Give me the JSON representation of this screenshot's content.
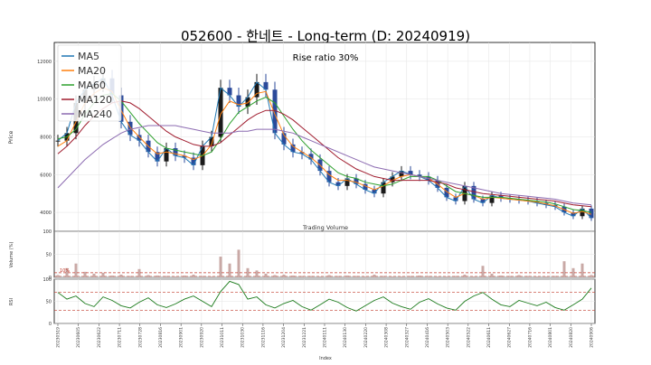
{
  "chart_data": {
    "title": "052600 - 한네트 - Long-term (D: 20240919)",
    "annotation": "Rise ratio 30%",
    "type": "line",
    "price_panel": {
      "ylabel": "Price",
      "ylim": [
        3000,
        13000
      ],
      "yticks": [
        4000,
        6000,
        8000,
        10000,
        12000
      ],
      "grid": true,
      "legend_placement": "top-left",
      "series": [
        {
          "name": "MA5",
          "color": "#1f77b4"
        },
        {
          "name": "MA20",
          "color": "#ff7f0e"
        },
        {
          "name": "MA60",
          "color": "#2ca02c"
        },
        {
          "name": "MA120",
          "color": "#a01c2e"
        },
        {
          "name": "MA240",
          "color": "#8c6bb1"
        }
      ],
      "close": [
        7800,
        8200,
        9800,
        10500,
        10800,
        11100,
        10200,
        8800,
        8100,
        7800,
        7200,
        6700,
        7400,
        7000,
        6900,
        6500,
        7500,
        8000,
        10600,
        10200,
        9600,
        10100,
        10900,
        10500,
        8200,
        7600,
        7200,
        7100,
        6800,
        6200,
        5600,
        5400,
        5800,
        5500,
        5200,
        5000,
        5600,
        5900,
        6200,
        6000,
        5900,
        5700,
        5300,
        4800,
        4600,
        5400,
        4700,
        4500,
        4900,
        4750,
        4700,
        4650,
        4600,
        4500,
        4400,
        4300,
        4000,
        3800,
        4200,
        3700
      ],
      "ma20": [
        7500,
        7800,
        8800,
        9800,
        10300,
        10600,
        10400,
        9400,
        8500,
        8000,
        7500,
        7100,
        7200,
        7100,
        7000,
        6800,
        7000,
        7600,
        9200,
        9900,
        9700,
        9800,
        10300,
        10400,
        9200,
        8100,
        7500,
        7200,
        6900,
        6500,
        6000,
        5700,
        5700,
        5600,
        5400,
        5200,
        5400,
        5700,
        5900,
        6000,
        5900,
        5800,
        5500,
        5100,
        4800,
        5000,
        4900,
        4700,
        4800,
        4750,
        4700,
        4650,
        4600,
        4550,
        4450,
        4350,
        4150,
        3950,
        4050,
        3900
      ],
      "ma60": [
        7900,
        8000,
        8400,
        9200,
        9800,
        10200,
        10300,
        9900,
        9300,
        8700,
        8200,
        7700,
        7400,
        7300,
        7200,
        7100,
        7000,
        7200,
        7900,
        8700,
        9300,
        9600,
        9900,
        10100,
        9800,
        9100,
        8400,
        7800,
        7300,
        6900,
        6500,
        6100,
        5900,
        5800,
        5600,
        5500,
        5400,
        5500,
        5700,
        5900,
        5900,
        5900,
        5700,
        5400,
        5100,
        5000,
        4900,
        4800,
        4800,
        4800,
        4750,
        4700,
        4650,
        4600,
        4550,
        4450,
        4300,
        4150,
        4100,
        4000
      ],
      "ma120": [
        7100,
        7500,
        8000,
        8600,
        9100,
        9500,
        9800,
        9900,
        9800,
        9500,
        9100,
        8700,
        8300,
        8000,
        7800,
        7600,
        7500,
        7500,
        7700,
        8100,
        8500,
        8900,
        9200,
        9400,
        9400,
        9200,
        8900,
        8500,
        8100,
        7700,
        7300,
        6900,
        6600,
        6300,
        6100,
        5900,
        5800,
        5700,
        5700,
        5700,
        5700,
        5700,
        5600,
        5500,
        5300,
        5200,
        5100,
        5000,
        4950,
        4900,
        4850,
        4800,
        4750,
        4700,
        4650,
        4600,
        4500,
        4400,
        4350,
        4300
      ],
      "ma240": [
        5300,
        5800,
        6300,
        6800,
        7200,
        7600,
        7900,
        8200,
        8400,
        8500,
        8600,
        8600,
        8600,
        8600,
        8500,
        8400,
        8300,
        8200,
        8200,
        8200,
        8300,
        8300,
        8400,
        8400,
        8400,
        8300,
        8200,
        8000,
        7800,
        7600,
        7400,
        7200,
        7000,
        6800,
        6600,
        6400,
        6300,
        6200,
        6100,
        6000,
        5900,
        5800,
        5700,
        5600,
        5500,
        5400,
        5300,
        5200,
        5100,
        5000,
        4950,
        4900,
        4850,
        4800,
        4750,
        4700,
        4600,
        4500,
        4450,
        4400
      ]
    },
    "volume_panel": {
      "title": "Trading Volume",
      "ylabel": "Volume (%)",
      "ylim": [
        0,
        100
      ],
      "yticks": [
        0,
        50,
        100
      ],
      "threshold_label": "10%",
      "threshold": 10,
      "values": [
        5,
        20,
        30,
        12,
        8,
        10,
        4,
        6,
        3,
        18,
        5,
        4,
        3,
        2,
        4,
        6,
        3,
        2,
        45,
        30,
        60,
        20,
        15,
        8,
        5,
        6,
        4,
        3,
        3,
        2,
        5,
        3,
        4,
        3,
        2,
        6,
        3,
        2,
        2,
        3,
        4,
        3,
        2,
        2,
        3,
        6,
        2,
        25,
        8,
        4,
        3,
        5,
        3,
        2,
        2,
        3,
        35,
        20,
        30,
        5
      ]
    },
    "rsi_panel": {
      "ylabel": "RSI",
      "ylim": [
        0,
        100
      ],
      "yticks": [
        0,
        50,
        100
      ],
      "upper": 70,
      "lower": 30,
      "values": [
        70,
        55,
        62,
        45,
        38,
        60,
        52,
        40,
        35,
        48,
        58,
        42,
        36,
        44,
        55,
        62,
        50,
        38,
        72,
        95,
        88,
        55,
        60,
        42,
        35,
        45,
        52,
        38,
        30,
        42,
        55,
        48,
        36,
        28,
        40,
        52,
        60,
        46,
        38,
        32,
        48,
        56,
        44,
        35,
        30,
        50,
        62,
        70,
        55,
        42,
        38,
        52,
        46,
        40,
        48,
        36,
        30,
        42,
        55,
        80
      ]
    },
    "xlabel": "Index",
    "xticks": [
      "20230519",
      "20230605",
      "20230622",
      "20230711",
      "20230728",
      "20230816",
      "20230901",
      "20230920",
      "20231011",
      "20231030",
      "20231116",
      "20231204",
      "20231221",
      "20240111",
      "20240130",
      "20240220",
      "20240308",
      "20240327",
      "20240416",
      "20240503",
      "20240522",
      "20240611",
      "20240627",
      "20240716",
      "20240801",
      "20240820",
      "20240906"
    ],
    "xticks_layout_note": ""
  }
}
